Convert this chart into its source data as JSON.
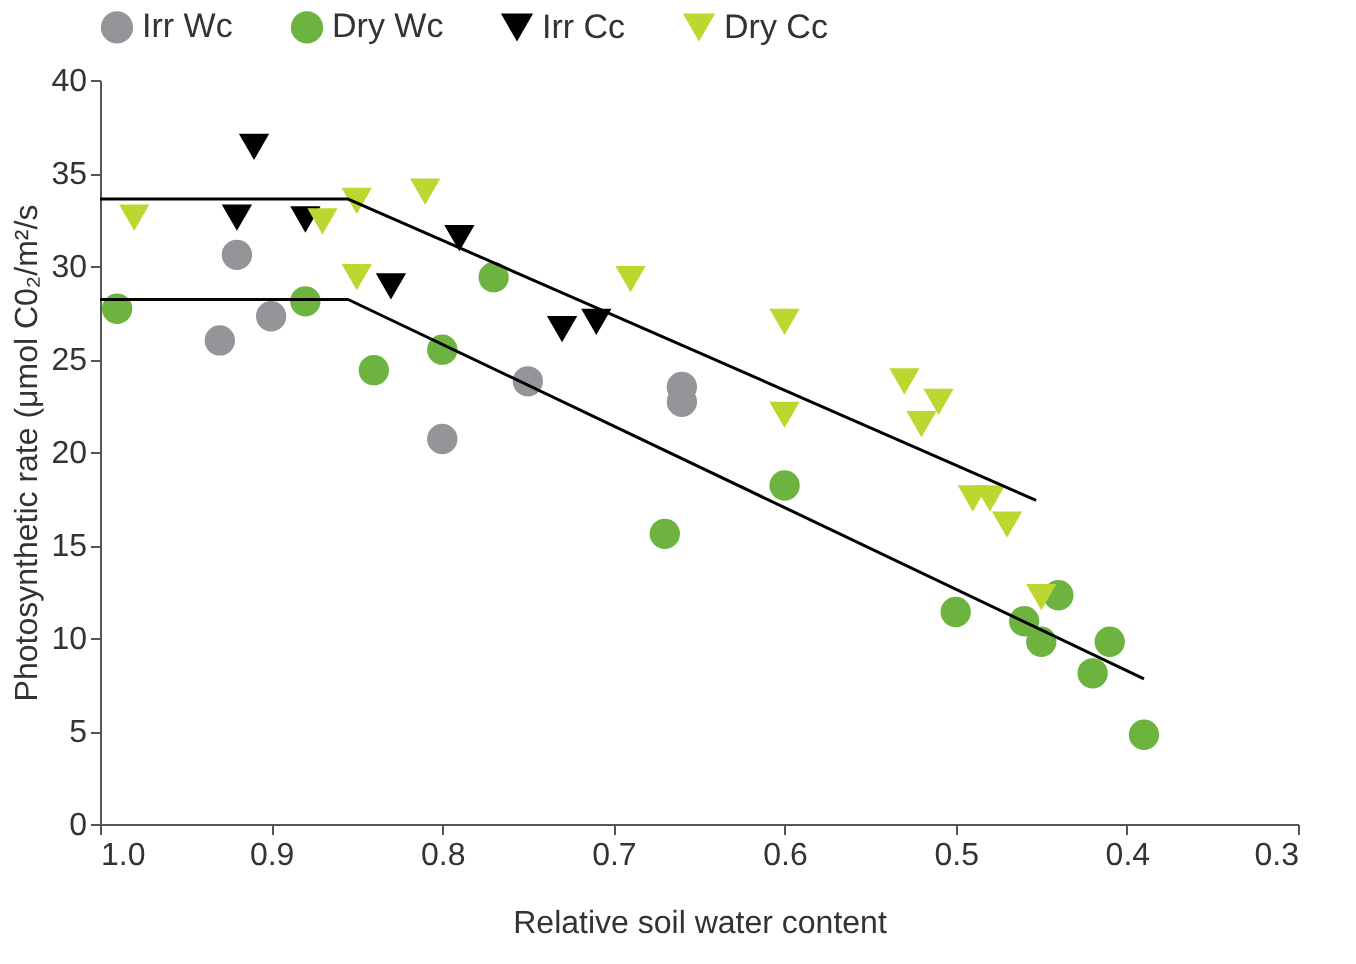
{
  "chart_data": {
    "type": "scatter",
    "xlabel": "Relative soil water content",
    "ylabel": "Photosynthetic rate (μmol C0₂/m²/s",
    "xlim": [
      1.0,
      0.3
    ],
    "xticks": [
      {
        "value": 1.0,
        "label": "1.0"
      },
      {
        "value": 0.9,
        "label": "0.9"
      },
      {
        "value": 0.8,
        "label": "0.8"
      },
      {
        "value": 0.7,
        "label": "0.7"
      },
      {
        "value": 0.6,
        "label": "0.6"
      },
      {
        "value": 0.5,
        "label": "0.5"
      },
      {
        "value": 0.4,
        "label": "0.4"
      },
      {
        "value": 0.3,
        "label": "0.3"
      }
    ],
    "ylim": [
      0,
      40
    ],
    "yticks": [
      0,
      5,
      10,
      15,
      20,
      25,
      30,
      35,
      40
    ],
    "grid": false,
    "legend": "top",
    "series": [
      {
        "name": "Irr Wc",
        "color": "#939598",
        "marker": "circle",
        "x": [
          0.93,
          0.92,
          0.9,
          0.8,
          0.75,
          0.66,
          0.66
        ],
        "values": [
          26.0,
          30.6,
          27.3,
          20.7,
          23.8,
          23.5,
          22.7
        ]
      },
      {
        "name": "Dry Wc",
        "color": "#6cb33f",
        "marker": "circle",
        "x": [
          0.99,
          0.88,
          0.84,
          0.8,
          0.77,
          0.67,
          0.6,
          0.5,
          0.46,
          0.45,
          0.44,
          0.41,
          0.42,
          0.39
        ],
        "values": [
          27.7,
          28.1,
          24.4,
          25.5,
          29.4,
          15.6,
          18.2,
          11.4,
          10.9,
          9.8,
          12.3,
          9.8,
          8.1,
          4.8
        ]
      },
      {
        "name": "Irr Cc",
        "color": "#000000",
        "marker": "triangle",
        "x": [
          0.91,
          0.92,
          0.88,
          0.83,
          0.79,
          0.73,
          0.71
        ],
        "values": [
          36.4,
          32.6,
          32.5,
          28.9,
          31.5,
          26.6,
          27.0
        ]
      },
      {
        "name": "Dry Cc",
        "color": "#bed630",
        "marker": "triangle",
        "x": [
          0.98,
          0.85,
          0.87,
          0.81,
          0.85,
          0.69,
          0.6,
          0.6,
          0.53,
          0.51,
          0.52,
          0.49,
          0.48,
          0.47,
          0.45
        ],
        "values": [
          32.6,
          33.5,
          32.4,
          34.0,
          29.4,
          29.3,
          27.0,
          22.0,
          23.8,
          22.7,
          21.5,
          17.5,
          17.5,
          16.1,
          12.2
        ]
      },
      {
        "type": "line",
        "color": "#000000",
        "x": [
          1.0,
          0.855,
          0.453
        ],
        "values": [
          33.6,
          33.6,
          17.4
        ]
      },
      {
        "type": "line",
        "color": "#000000",
        "x": [
          1.0,
          0.855,
          0.39
        ],
        "values": [
          28.2,
          28.2,
          7.8
        ]
      }
    ]
  }
}
